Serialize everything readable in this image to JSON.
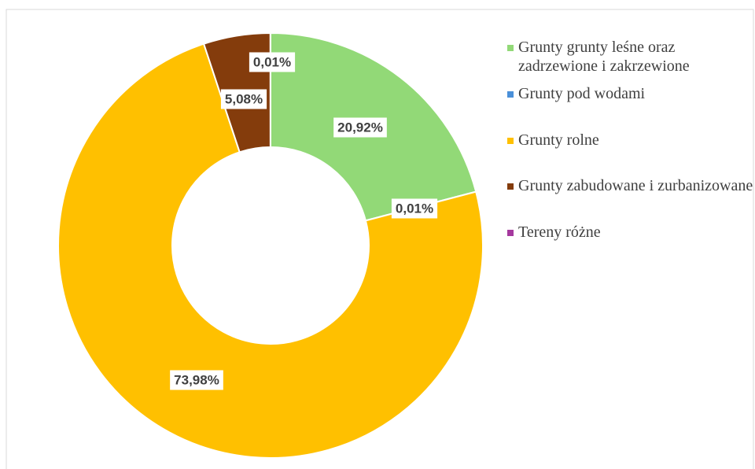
{
  "chart_data": {
    "type": "donut",
    "categories": [
      "Grunty grunty leśne oraz zadrzewione i zakrzewione",
      "Grunty pod wodami",
      "Grunty rolne",
      "Grunty zabudowane i zurbanizowane",
      "Tereny różne"
    ],
    "values": [
      20.92,
      0.01,
      73.98,
      5.08,
      0.01
    ],
    "value_labels": [
      "20,92%",
      "0,01%",
      "73,98%",
      "5,08%",
      "0,01%"
    ],
    "colors": [
      "#92d977",
      "#4a90d9",
      "#ffc000",
      "#843c0c",
      "#a5399e"
    ],
    "legend": "right"
  }
}
